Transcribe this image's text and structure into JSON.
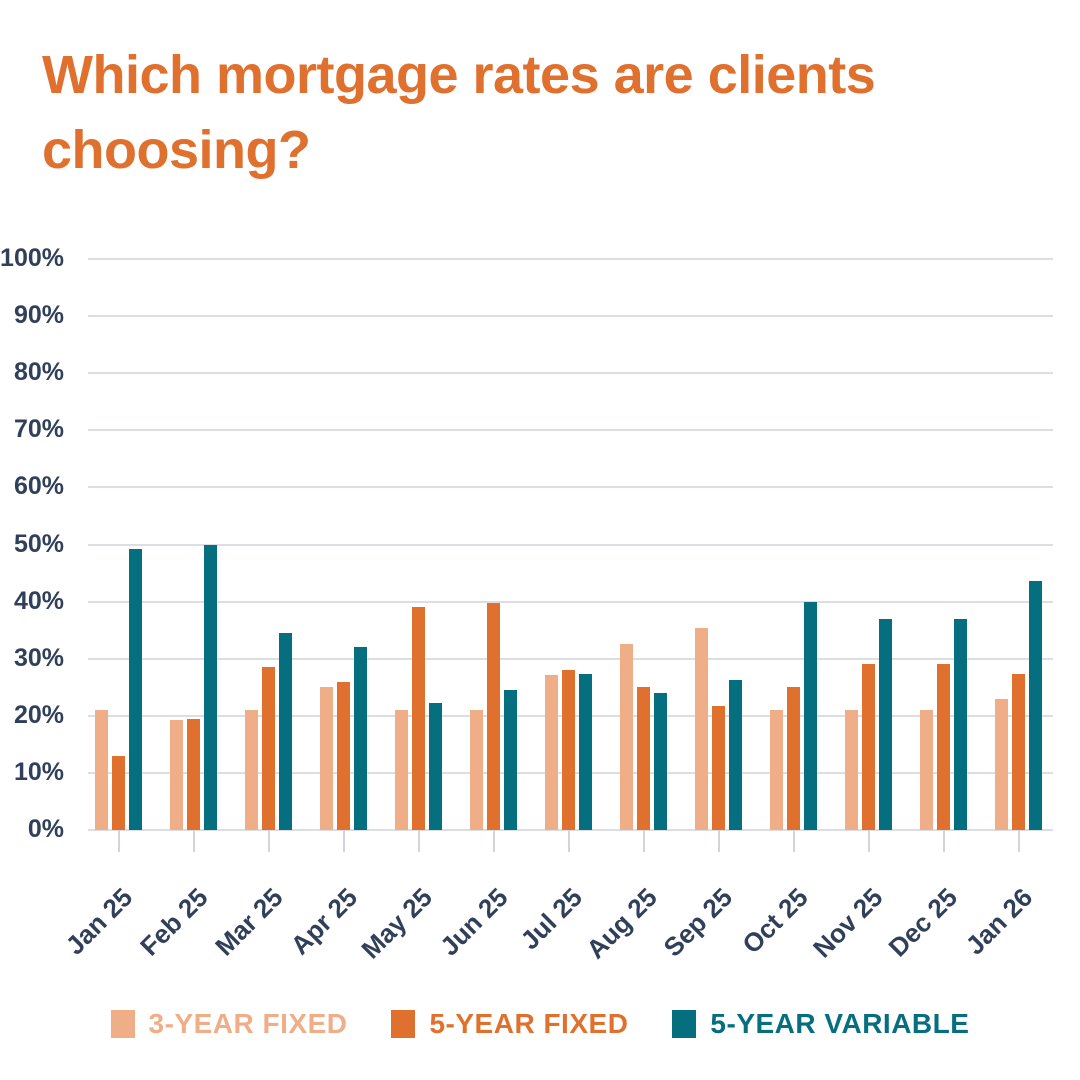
{
  "title": {
    "text": "Which mortgage rates are clients choosing?"
  },
  "colors": {
    "background": "#FFFFFF",
    "title": "#E0702E",
    "axis_text": "#31405A",
    "gridline": "#DBDEE2",
    "tick": "#D2D6DC"
  },
  "chart_data": {
    "type": "bar",
    "title": "Which mortgage rates are clients choosing?",
    "categories": [
      "Jan 25",
      "Feb 25",
      "Mar 25",
      "Apr 25",
      "May 25",
      "Jun 25",
      "Jul 25",
      "Aug 25",
      "Sep 25",
      "Oct 25",
      "Nov 25",
      "Dec 25",
      "Jan 26"
    ],
    "series": [
      {
        "name": "3-YEAR FIXED",
        "color": "#EFAE87",
        "values": [
          21.0,
          19.3,
          21.0,
          25.0,
          21.0,
          21.0,
          27.2,
          32.5,
          35.3,
          21.0,
          21.0,
          21.0,
          23.0
        ]
      },
      {
        "name": "5-YEAR FIXED",
        "color": "#E0702E",
        "values": [
          13.0,
          19.5,
          28.5,
          26.0,
          39.0,
          39.7,
          28.1,
          25.0,
          21.7,
          25.0,
          29.0,
          29.0,
          27.3
        ]
      },
      {
        "name": "5-YEAR VARIABLE",
        "color": "#056E7F",
        "values": [
          49.2,
          50.0,
          34.5,
          32.0,
          22.3,
          24.5,
          27.3,
          24.0,
          26.3,
          40.0,
          37.0,
          37.0,
          43.7
        ]
      }
    ],
    "xlabel": "",
    "ylabel": "",
    "ylim": [
      0,
      100
    ],
    "ytick_step": 10,
    "ytick_suffix": "%",
    "grid": true,
    "legend_position": "bottom"
  }
}
